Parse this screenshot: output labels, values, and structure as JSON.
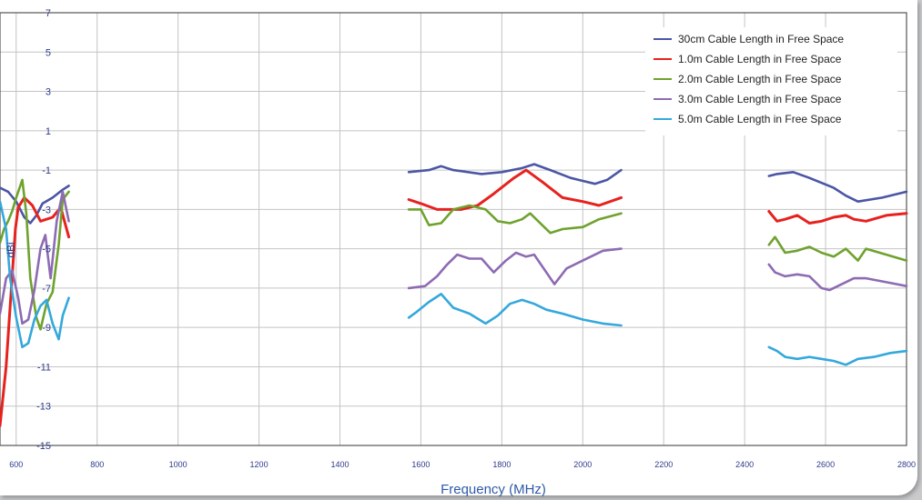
{
  "chart_data": {
    "type": "line",
    "title": "",
    "xlabel": "Frequency (MHz)",
    "ylabel": "dBi",
    "xlim": [
      560,
      2800
    ],
    "ylim": [
      -15,
      7
    ],
    "x_ticks": [
      600,
      800,
      1000,
      1200,
      1400,
      1600,
      1800,
      2000,
      2200,
      2400,
      2600,
      2800
    ],
    "y_ticks": [
      7,
      5,
      3,
      1,
      -1,
      -3,
      -5,
      -7,
      -9,
      -11,
      -13,
      -15
    ],
    "grid": true,
    "legend_position": "top-right",
    "series": [
      {
        "name": "30cm Cable Length in Free Space",
        "color": "#4b56a5",
        "segments": [
          [
            [
              560,
              -1.9
            ],
            [
              580,
              -2.1
            ],
            [
              600,
              -2.6
            ],
            [
              620,
              -3.4
            ],
            [
              635,
              -3.7
            ],
            [
              650,
              -3.3
            ],
            [
              665,
              -2.7
            ],
            [
              690,
              -2.4
            ],
            [
              715,
              -2.0
            ],
            [
              730,
              -1.8
            ]
          ],
          [
            [
              1570,
              -1.1
            ],
            [
              1620,
              -1.0
            ],
            [
              1650,
              -0.8
            ],
            [
              1680,
              -1.0
            ],
            [
              1750,
              -1.2
            ],
            [
              1800,
              -1.1
            ],
            [
              1850,
              -0.9
            ],
            [
              1880,
              -0.7
            ],
            [
              1920,
              -1.0
            ],
            [
              1970,
              -1.4
            ],
            [
              2030,
              -1.7
            ],
            [
              2060,
              -1.5
            ],
            [
              2095,
              -1.0
            ]
          ],
          [
            [
              2460,
              -1.3
            ],
            [
              2480,
              -1.2
            ],
            [
              2520,
              -1.1
            ],
            [
              2560,
              -1.4
            ],
            [
              2620,
              -1.9
            ],
            [
              2650,
              -2.3
            ],
            [
              2680,
              -2.6
            ],
            [
              2740,
              -2.4
            ],
            [
              2800,
              -2.1
            ]
          ]
        ]
      },
      {
        "name": "1.0m Cable Length in Free Space",
        "color": "#e6221e",
        "segments": [
          [
            [
              560,
              -14.0
            ],
            [
              575,
              -11.0
            ],
            [
              588,
              -7.0
            ],
            [
              598,
              -4.0
            ],
            [
              605,
              -2.9
            ],
            [
              620,
              -2.4
            ],
            [
              640,
              -2.8
            ],
            [
              660,
              -3.6
            ],
            [
              690,
              -3.4
            ],
            [
              710,
              -2.9
            ],
            [
              730,
              -4.4
            ]
          ],
          [
            [
              1570,
              -2.5
            ],
            [
              1600,
              -2.7
            ],
            [
              1640,
              -3.0
            ],
            [
              1700,
              -3.0
            ],
            [
              1740,
              -2.8
            ],
            [
              1780,
              -2.2
            ],
            [
              1830,
              -1.4
            ],
            [
              1860,
              -1.0
            ],
            [
              1900,
              -1.6
            ],
            [
              1950,
              -2.4
            ],
            [
              2000,
              -2.6
            ],
            [
              2040,
              -2.8
            ],
            [
              2095,
              -2.4
            ]
          ],
          [
            [
              2460,
              -3.1
            ],
            [
              2480,
              -3.6
            ],
            [
              2500,
              -3.5
            ],
            [
              2530,
              -3.3
            ],
            [
              2560,
              -3.7
            ],
            [
              2590,
              -3.6
            ],
            [
              2620,
              -3.4
            ],
            [
              2650,
              -3.3
            ],
            [
              2670,
              -3.5
            ],
            [
              2700,
              -3.6
            ],
            [
              2750,
              -3.3
            ],
            [
              2800,
              -3.2
            ]
          ]
        ]
      },
      {
        "name": "2.0m Cable Length in Free Space",
        "color": "#6fa22e",
        "segments": [
          [
            [
              560,
              -4.7
            ],
            [
              570,
              -4.0
            ],
            [
              580,
              -3.6
            ],
            [
              590,
              -3.1
            ],
            [
              600,
              -2.4
            ],
            [
              615,
              -1.5
            ],
            [
              625,
              -3.2
            ],
            [
              635,
              -6.5
            ],
            [
              650,
              -8.5
            ],
            [
              660,
              -9.1
            ],
            [
              675,
              -7.8
            ],
            [
              690,
              -7.2
            ],
            [
              705,
              -4.8
            ],
            [
              715,
              -2.5
            ],
            [
              730,
              -2.1
            ]
          ],
          [
            [
              1570,
              -3.0
            ],
            [
              1600,
              -3.0
            ],
            [
              1620,
              -3.8
            ],
            [
              1650,
              -3.7
            ],
            [
              1680,
              -3.0
            ],
            [
              1720,
              -2.8
            ],
            [
              1760,
              -3.0
            ],
            [
              1790,
              -3.6
            ],
            [
              1820,
              -3.7
            ],
            [
              1850,
              -3.5
            ],
            [
              1870,
              -3.2
            ],
            [
              1900,
              -3.8
            ],
            [
              1920,
              -4.2
            ],
            [
              1950,
              -4.0
            ],
            [
              2000,
              -3.9
            ],
            [
              2040,
              -3.5
            ],
            [
              2095,
              -3.2
            ]
          ],
          [
            [
              2460,
              -4.8
            ],
            [
              2475,
              -4.4
            ],
            [
              2500,
              -5.2
            ],
            [
              2530,
              -5.1
            ],
            [
              2560,
              -4.9
            ],
            [
              2590,
              -5.2
            ],
            [
              2620,
              -5.4
            ],
            [
              2650,
              -5.0
            ],
            [
              2680,
              -5.6
            ],
            [
              2700,
              -5.0
            ],
            [
              2750,
              -5.3
            ],
            [
              2800,
              -5.6
            ]
          ]
        ]
      },
      {
        "name": "3.0m Cable Length in Free Space",
        "color": "#8d6bb3",
        "segments": [
          [
            [
              560,
              -8.3
            ],
            [
              575,
              -6.5
            ],
            [
              590,
              -6.1
            ],
            [
              605,
              -7.5
            ],
            [
              615,
              -8.8
            ],
            [
              630,
              -8.6
            ],
            [
              645,
              -7.1
            ],
            [
              660,
              -5.0
            ],
            [
              672,
              -4.3
            ],
            [
              685,
              -6.5
            ],
            [
              700,
              -3.6
            ],
            [
              715,
              -2.1
            ],
            [
              730,
              -3.6
            ]
          ],
          [
            [
              1570,
              -7.0
            ],
            [
              1610,
              -6.9
            ],
            [
              1640,
              -6.4
            ],
            [
              1665,
              -5.8
            ],
            [
              1690,
              -5.3
            ],
            [
              1720,
              -5.5
            ],
            [
              1750,
              -5.5
            ],
            [
              1780,
              -6.2
            ],
            [
              1810,
              -5.6
            ],
            [
              1835,
              -5.2
            ],
            [
              1860,
              -5.4
            ],
            [
              1880,
              -5.3
            ],
            [
              1910,
              -6.2
            ],
            [
              1930,
              -6.8
            ],
            [
              1960,
              -6.0
            ],
            [
              2000,
              -5.6
            ],
            [
              2050,
              -5.1
            ],
            [
              2095,
              -5.0
            ]
          ],
          [
            [
              2460,
              -5.8
            ],
            [
              2475,
              -6.2
            ],
            [
              2500,
              -6.4
            ],
            [
              2530,
              -6.3
            ],
            [
              2560,
              -6.4
            ],
            [
              2590,
              -7.0
            ],
            [
              2610,
              -7.1
            ],
            [
              2640,
              -6.8
            ],
            [
              2670,
              -6.5
            ],
            [
              2700,
              -6.5
            ],
            [
              2750,
              -6.7
            ],
            [
              2800,
              -6.9
            ]
          ]
        ]
      },
      {
        "name": "5.0m Cable Length in Free Space",
        "color": "#34a8dc",
        "segments": [
          [
            [
              560,
              -2.6
            ],
            [
              575,
              -4.0
            ],
            [
              585,
              -6.5
            ],
            [
              600,
              -8.5
            ],
            [
              615,
              -10.0
            ],
            [
              630,
              -9.8
            ],
            [
              645,
              -8.6
            ],
            [
              660,
              -7.9
            ],
            [
              675,
              -7.6
            ],
            [
              690,
              -8.8
            ],
            [
              705,
              -9.6
            ],
            [
              715,
              -8.4
            ],
            [
              730,
              -7.5
            ]
          ],
          [
            [
              1570,
              -8.5
            ],
            [
              1590,
              -8.2
            ],
            [
              1620,
              -7.7
            ],
            [
              1650,
              -7.3
            ],
            [
              1680,
              -8.0
            ],
            [
              1720,
              -8.3
            ],
            [
              1760,
              -8.8
            ],
            [
              1790,
              -8.4
            ],
            [
              1820,
              -7.8
            ],
            [
              1850,
              -7.6
            ],
            [
              1880,
              -7.8
            ],
            [
              1910,
              -8.1
            ],
            [
              1950,
              -8.3
            ],
            [
              2000,
              -8.6
            ],
            [
              2050,
              -8.8
            ],
            [
              2095,
              -8.9
            ]
          ],
          [
            [
              2460,
              -10.0
            ],
            [
              2480,
              -10.2
            ],
            [
              2500,
              -10.5
            ],
            [
              2530,
              -10.6
            ],
            [
              2560,
              -10.5
            ],
            [
              2590,
              -10.6
            ],
            [
              2620,
              -10.7
            ],
            [
              2650,
              -10.9
            ],
            [
              2680,
              -10.6
            ],
            [
              2720,
              -10.5
            ],
            [
              2760,
              -10.3
            ],
            [
              2800,
              -10.2
            ]
          ]
        ]
      }
    ]
  }
}
